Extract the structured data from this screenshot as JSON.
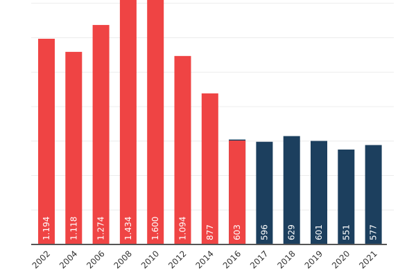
{
  "chart_data": {
    "type": "bar",
    "categories": [
      "2002",
      "2004",
      "2006",
      "2008",
      "2010",
      "2012",
      "2014",
      "2016",
      "2017",
      "2018",
      "2019",
      "2020",
      "2021"
    ],
    "values": [
      1194,
      1118,
      1274,
      1434,
      1600,
      1094,
      877,
      603,
      596,
      629,
      601,
      551,
      577
    ],
    "data_labels": [
      "1.194",
      "1.118",
      "1.274",
      "1.434",
      "1.600",
      "1.094",
      "877",
      "603",
      "596",
      "629",
      "601",
      "551",
      "577"
    ],
    "bar_colors": [
      "#ef4444",
      "#ef4444",
      "#ef4444",
      "#ef4444",
      "#ef4444",
      "#ef4444",
      "#ef4444",
      "#ef4444",
      "#1c3f5e",
      "#1c3f5e",
      "#1c3f5e",
      "#1c3f5e",
      "#1c3f5e"
    ],
    "overlay": {
      "category": "2016",
      "value": 609,
      "color": "#1c3f5e"
    },
    "ylim": [
      0,
      1419
    ],
    "grid": true,
    "grid_step": 200,
    "title": "",
    "xlabel": "",
    "ylabel": ""
  }
}
